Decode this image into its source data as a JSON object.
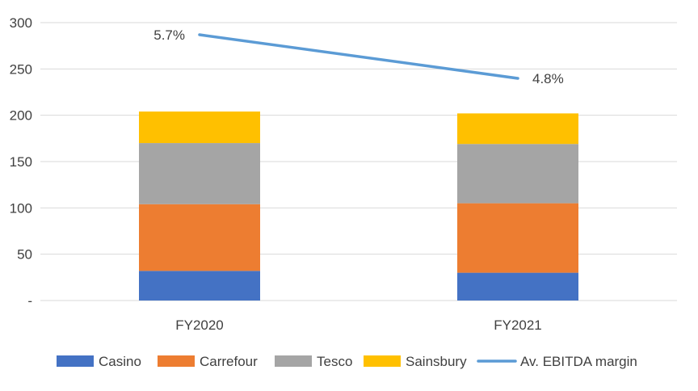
{
  "chart_data": {
    "type": "bar",
    "stacked": true,
    "categories": [
      "FY2020",
      "FY2021"
    ],
    "ylim": [
      0,
      300
    ],
    "yticks": [
      {
        "value": 0,
        "label": "-"
      },
      {
        "value": 50,
        "label": "50"
      },
      {
        "value": 100,
        "label": "100"
      },
      {
        "value": 150,
        "label": "150"
      },
      {
        "value": 200,
        "label": "200"
      },
      {
        "value": 250,
        "label": "250"
      },
      {
        "value": 300,
        "label": "300"
      }
    ],
    "grid": true,
    "legend": "bottom",
    "series": [
      {
        "name": "Casino",
        "type": "bar",
        "color": "#4472C4",
        "values": [
          32,
          30
        ]
      },
      {
        "name": "Carrefour",
        "type": "bar",
        "color": "#ED7D31",
        "values": [
          72,
          75
        ]
      },
      {
        "name": "Tesco",
        "type": "bar",
        "color": "#A5A5A5",
        "values": [
          66,
          64
        ]
      },
      {
        "name": "Sainsbury",
        "type": "bar",
        "color": "#FFC000",
        "values": [
          34,
          33
        ]
      },
      {
        "name": "Av. EBITDA margin",
        "type": "line",
        "color": "#5B9BD5",
        "values": [
          5.7,
          4.8
        ],
        "labels": [
          "5.7%",
          "4.8%"
        ]
      }
    ]
  }
}
